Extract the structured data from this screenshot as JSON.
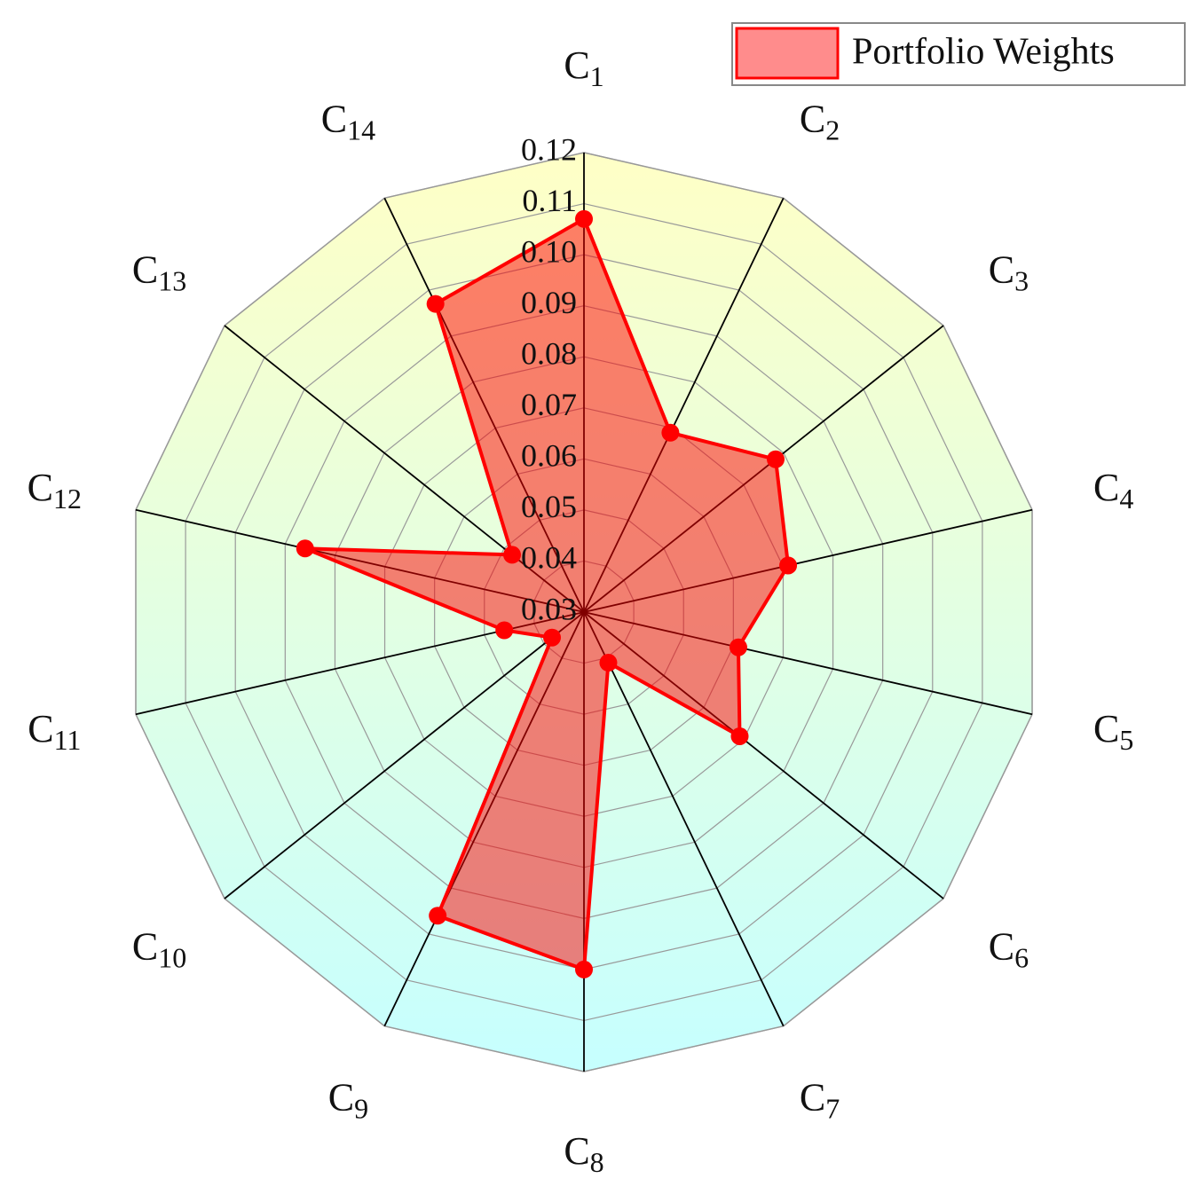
{
  "chart_data": {
    "type": "radar",
    "categories": [
      "C1",
      "C2",
      "C3",
      "C4",
      "C5",
      "C6",
      "C7",
      "C8",
      "C9",
      "C10",
      "C11",
      "C12",
      "C13",
      "C14"
    ],
    "series": [
      {
        "name": "Portfolio Weights",
        "color": "#ff0000",
        "values": [
          0.107,
          0.069,
          0.078,
          0.071,
          0.061,
          0.069,
          0.041,
          0.1,
          0.096,
          0.038,
          0.046,
          0.086,
          0.048,
          0.097
        ]
      }
    ],
    "ylim": [
      0.03,
      0.12
    ],
    "yticks": [
      0.03,
      0.04,
      0.05,
      0.06,
      0.07,
      0.08,
      0.09,
      {
        "value": 0.1,
        "label": "0.10"
      },
      0.11,
      0.12
    ],
    "grid": true,
    "legend": "upper right"
  }
}
